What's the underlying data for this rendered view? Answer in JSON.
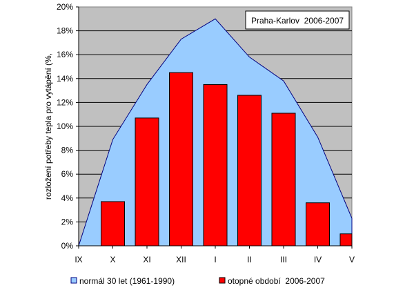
{
  "chart_data": {
    "type": "bar",
    "annotation": "Praha-Karlov  2006-2007",
    "ylabel": "rozložení potřeby tepla pro vytápění (%,",
    "xlabel": "",
    "ylim": [
      0,
      20
    ],
    "y_ticks": [
      "0%",
      "2%",
      "4%",
      "6%",
      "8%",
      "10%",
      "12%",
      "14%",
      "16%",
      "18%",
      "20%"
    ],
    "y_tick_values": [
      0,
      2,
      4,
      6,
      8,
      10,
      12,
      14,
      16,
      18,
      20
    ],
    "categories": [
      "IX",
      "X",
      "XI",
      "XII",
      "I",
      "II",
      "III",
      "IV",
      "V"
    ],
    "grid": true,
    "legend_position": "bottom",
    "series": [
      {
        "name": "normál 30 let (1961-1990)",
        "type": "area",
        "color": "#99ccff",
        "values": [
          0.0,
          8.9,
          13.5,
          17.3,
          19.0,
          15.8,
          13.8,
          9.1,
          2.3
        ]
      },
      {
        "name": "otopné období  2006-2007",
        "type": "bar",
        "color": "#ff0000",
        "values": [
          0.0,
          3.7,
          10.7,
          14.5,
          13.5,
          12.6,
          11.1,
          3.6,
          1.0
        ]
      }
    ]
  }
}
